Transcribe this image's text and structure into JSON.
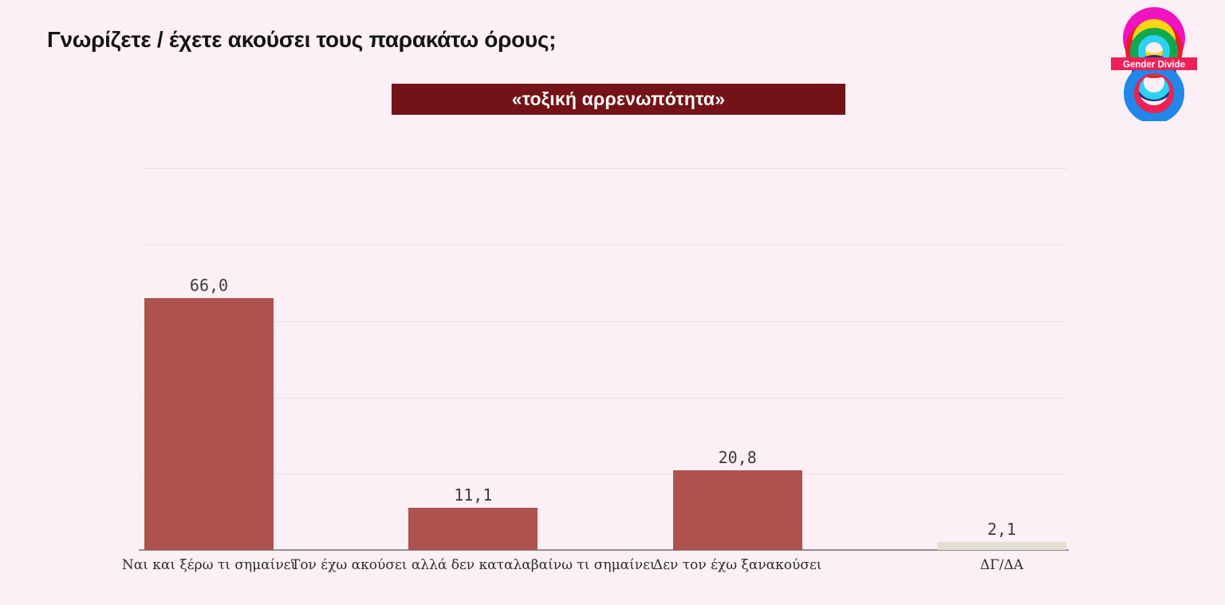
{
  "page": {
    "background_color": "#fdeff6"
  },
  "header": {
    "title": "Γνωρίζετε / έχετε ακούσει τους παρακάτω όρους;"
  },
  "term_banner": {
    "label": "«τοξική αρρενωπότητα»",
    "background_color": "#741317",
    "text_color": "#ffffff"
  },
  "logo": {
    "banner_label": "Gender Divide",
    "banner_color": "#ee2058",
    "banner_text_color": "#ffffff",
    "ring_colors": {
      "magenta": "#f112c1",
      "red": "#ea1c2c",
      "yellow": "#ffd60a",
      "green": "#12a84f",
      "cyan": "#2bd2f3",
      "navy": "#1e2f85",
      "crimson": "#ee2053",
      "blue": "#2187e8"
    }
  },
  "chart_data": {
    "type": "bar",
    "title": "«τοξική αρρενωπότητα»",
    "question": "Γνωρίζετε / έχετε ακούσει τους παρακάτω όρους;",
    "categories": [
      "Ναι και ξέρω τι σημαίνει",
      "Τον έχω ακούσει αλλά δεν καταλαβαίνω τι σημαίνει",
      "Δεν τον έχω ξανακούσει",
      "ΔΓ/ΔΑ"
    ],
    "values": [
      66.0,
      11.1,
      20.8,
      2.1
    ],
    "value_labels": [
      "66,0",
      "11,1",
      "20,8",
      "2,1"
    ],
    "bar_colors": [
      "#ae524e",
      "#ae524e",
      "#ae524e",
      "#e5dfd1"
    ],
    "xlabel": "",
    "ylabel": "",
    "ylim": [
      0,
      100
    ],
    "gridline_step": 20,
    "grid": true,
    "y_tick_labels_visible": false,
    "legend_position": "none"
  }
}
